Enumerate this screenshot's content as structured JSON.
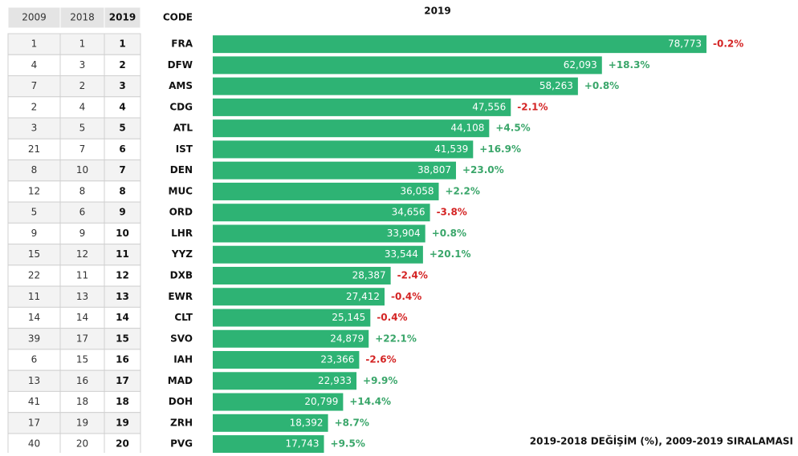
{
  "chart_data": {
    "type": "hbar",
    "title": "2019",
    "footnote": "2019-2018 DEĞİŞİM (%), 2009-2019 SIRALAMASI",
    "category_header": "CODE",
    "rank_columns": [
      {
        "name": "2009",
        "values": [
          1,
          4,
          7,
          2,
          3,
          21,
          8,
          12,
          5,
          9,
          15,
          22,
          11,
          14,
          39,
          6,
          13,
          41,
          17,
          40
        ]
      },
      {
        "name": "2018",
        "values": [
          1,
          3,
          2,
          4,
          5,
          7,
          10,
          8,
          6,
          9,
          12,
          11,
          13,
          14,
          17,
          15,
          16,
          18,
          19,
          20
        ]
      },
      {
        "name": "2019",
        "values": [
          1,
          2,
          3,
          4,
          5,
          6,
          7,
          8,
          9,
          10,
          11,
          12,
          13,
          14,
          15,
          16,
          17,
          18,
          19,
          20
        ]
      }
    ],
    "categories": [
      "FRA",
      "DFW",
      "AMS",
      "CDG",
      "ATL",
      "IST",
      "DEN",
      "MUC",
      "ORD",
      "LHR",
      "YYZ",
      "DXB",
      "EWR",
      "CLT",
      "SVO",
      "IAH",
      "MAD",
      "DOH",
      "ZRH",
      "PVG"
    ],
    "values": [
      78773,
      62093,
      58263,
      47556,
      44108,
      41539,
      38807,
      36058,
      34656,
      33904,
      33544,
      28387,
      27412,
      25145,
      24879,
      23366,
      22933,
      20799,
      18392,
      17743
    ],
    "value_labels": [
      "78,773",
      "62,093",
      "58,263",
      "47,556",
      "44,108",
      "41,539",
      "38,807",
      "36,058",
      "34,656",
      "33,904",
      "33,544",
      "28,387",
      "27,412",
      "25,145",
      "24,879",
      "23,366",
      "22,933",
      "20,799",
      "18,392",
      "17,743"
    ],
    "changes": [
      -0.2,
      18.3,
      0.8,
      -2.1,
      4.5,
      16.9,
      23.0,
      2.2,
      -3.8,
      0.8,
      20.1,
      -2.4,
      -0.4,
      -0.4,
      22.1,
      -2.6,
      9.9,
      14.4,
      8.7,
      9.5
    ],
    "change_labels": [
      "-0.2%",
      "+18.3%",
      "+0.8%",
      "-2.1%",
      "+4.5%",
      "+16.9%",
      "+23.0%",
      "+2.2%",
      "-3.8%",
      "+0.8%",
      "+20.1%",
      "-2.4%",
      "-0.4%",
      "-0.4%",
      "+22.1%",
      "-2.6%",
      "+9.9%",
      "+14.4%",
      "+8.7%",
      "+9.5%"
    ],
    "color": "#2eb374",
    "positive_color": "#3aa66a",
    "negative_color": "#d42424"
  }
}
